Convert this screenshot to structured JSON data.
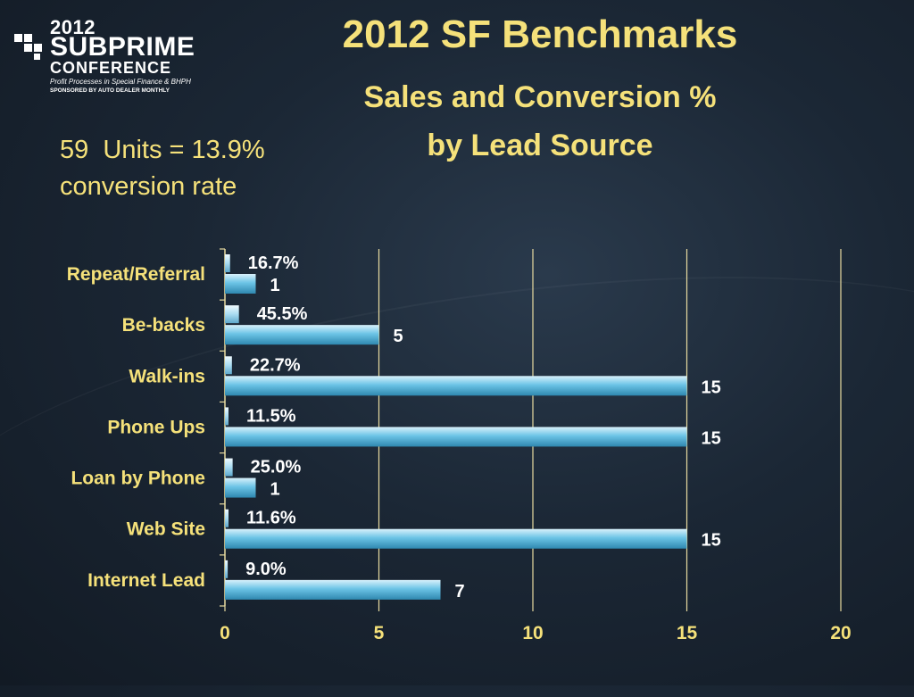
{
  "logo": {
    "year": "2012",
    "brand": "SUBPRIME",
    "conference": "CONFERENCE",
    "tagline": "Profit Processes in Special Finance & BHPH",
    "sponsor": "SPONSORED BY AUTO DEALER MONTHLY"
  },
  "slide": {
    "title": "2012 SF Benchmarks",
    "subtitle_line1": "Sales and Conversion %",
    "subtitle_line2": "by Lead Source",
    "note": "59  Units = 13.9%\nconversion rate"
  },
  "colors": {
    "title": "#f5e17a",
    "bar": "#6cc4e6",
    "bar_light": "#b6e4f6",
    "gridline": "#e8dba0",
    "background": "#1b2735"
  },
  "chart_data": {
    "type": "bar",
    "orientation": "horizontal",
    "categories": [
      "Repeat/Referral",
      "Be-backs",
      "Walk-ins",
      "Phone Ups",
      "Loan by Phone",
      "Web Site",
      "Internet Lead"
    ],
    "series": [
      {
        "values": [
          0.167,
          0.455,
          0.227,
          0.115,
          0.25,
          0.116,
          0.09
        ],
        "labels": [
          "16.7%",
          "45.5%",
          "22.7%",
          "11.5%",
          "25.0%",
          "11.6%",
          "9.0%"
        ]
      },
      {
        "values": [
          1,
          5,
          15,
          15,
          1,
          15,
          7
        ],
        "labels": [
          "1",
          "5",
          "15",
          "15",
          "1",
          "15",
          "7"
        ]
      }
    ],
    "xlim": [
      0,
      20
    ],
    "xticks": [
      0,
      5,
      10,
      15,
      20
    ],
    "xtick_labels": [
      "0",
      "5",
      "10",
      "15",
      "20"
    ],
    "grid": "vertical",
    "legend": "none"
  }
}
